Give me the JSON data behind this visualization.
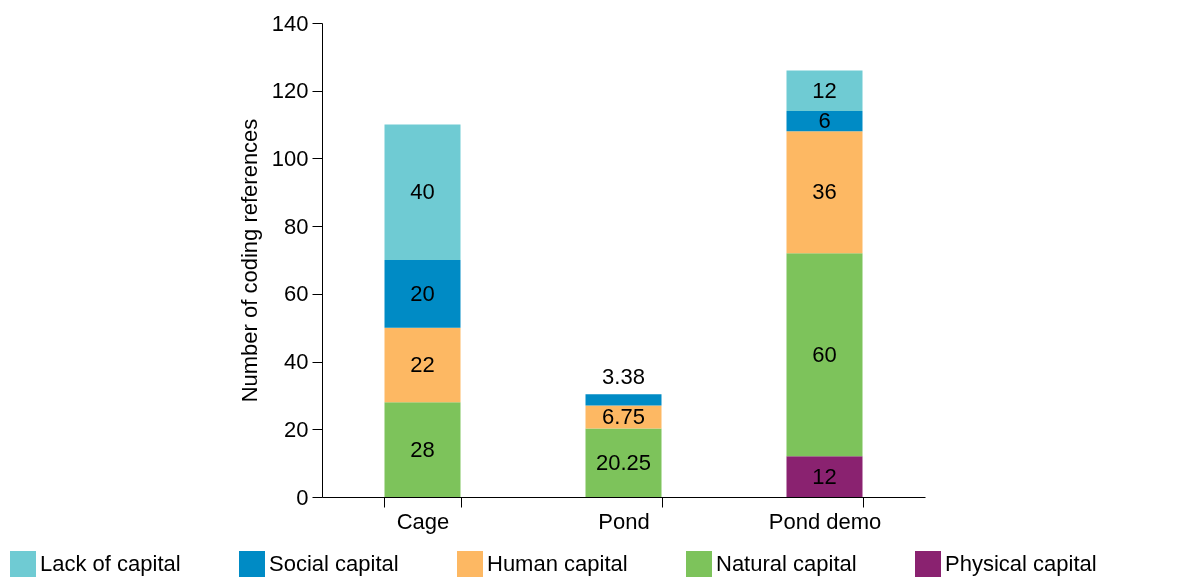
{
  "chart_data": {
    "type": "bar",
    "stacked": true,
    "ylabel": "Number of coding references",
    "categories": [
      "Cage",
      "Pond",
      "Pond demo"
    ],
    "series": [
      {
        "name": "Physical capital",
        "color": "#8a2270",
        "values": [
          null,
          null,
          12
        ]
      },
      {
        "name": "Natural capital",
        "color": "#7dc35b",
        "values": [
          28,
          20.25,
          60
        ]
      },
      {
        "name": "Human capital",
        "color": "#fdb863",
        "values": [
          22,
          6.75,
          36
        ]
      },
      {
        "name": "Social capital",
        "color": "#008bc5",
        "values": [
          20,
          3.38,
          6
        ]
      },
      {
        "name": "Lack of capital",
        "color": "#6fcbd3",
        "values": [
          40,
          null,
          12
        ]
      }
    ],
    "ylim": [
      0,
      140
    ],
    "yticks": [
      0,
      20,
      40,
      60,
      80,
      100,
      120,
      140
    ],
    "data_labels": true,
    "legend": "bottom",
    "grid": false
  }
}
